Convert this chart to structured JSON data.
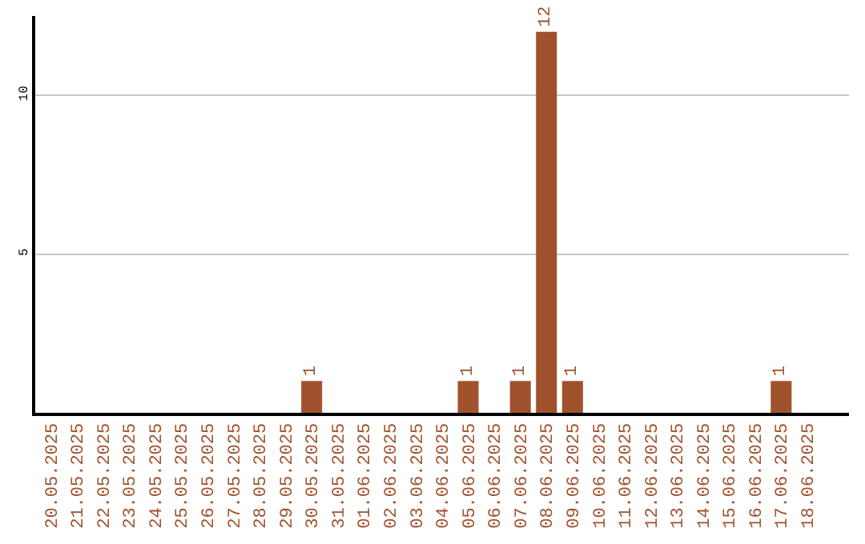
{
  "chart_data": {
    "type": "bar",
    "categories": [
      "20.05.2025",
      "21.05.2025",
      "22.05.2025",
      "23.05.2025",
      "24.05.2025",
      "25.05.2025",
      "26.05.2025",
      "27.05.2025",
      "28.05.2025",
      "29.05.2025",
      "30.05.2025",
      "31.05.2025",
      "01.06.2025",
      "02.06.2025",
      "03.06.2025",
      "04.06.2025",
      "05.06.2025",
      "06.06.2025",
      "07.06.2025",
      "08.06.2025",
      "09.06.2025",
      "10.06.2025",
      "11.06.2025",
      "12.06.2025",
      "13.06.2025",
      "14.06.2025",
      "15.06.2025",
      "16.06.2025",
      "17.06.2025",
      "18.06.2025"
    ],
    "values": [
      0,
      0,
      0,
      0,
      0,
      0,
      0,
      0,
      0,
      0,
      1,
      0,
      0,
      0,
      0,
      0,
      1,
      0,
      1,
      12,
      1,
      0,
      0,
      0,
      0,
      0,
      0,
      0,
      1,
      0
    ],
    "value_labels": [
      null,
      null,
      null,
      null,
      null,
      null,
      null,
      null,
      null,
      null,
      "1",
      null,
      null,
      null,
      null,
      null,
      "1",
      null,
      "1",
      "12",
      "1",
      null,
      null,
      null,
      null,
      null,
      null,
      null,
      "1",
      null
    ],
    "color": "#a0522d",
    "ylim": [
      0,
      12.5
    ],
    "yticks": [
      5,
      10
    ],
    "grid": "y",
    "legend": false
  }
}
